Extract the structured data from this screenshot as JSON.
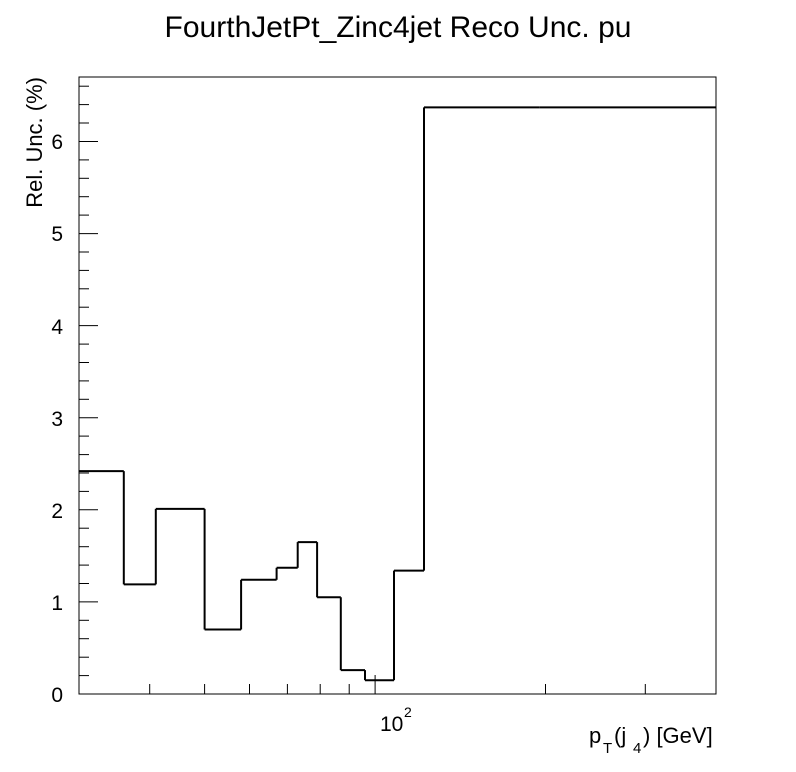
{
  "chart_data": {
    "type": "histogram",
    "title": "FourthJetPt_Zinc4jet Reco Unc. pu",
    "xlabel_main": "p",
    "xlabel_sub1": "T",
    "xlabel_paren_open": "(j",
    "xlabel_sub2": "4",
    "xlabel_tail": ") [GeV]",
    "ylabel": "Rel. Unc. (%)",
    "x_scale": "log",
    "xlim": [
      30,
      400
    ],
    "ylim": [
      0,
      6.7
    ],
    "x_tick_label_base": "10",
    "x_tick_label_exp": "2",
    "y_tick_labels": [
      "0",
      "1",
      "2",
      "3",
      "4",
      "5",
      "6"
    ],
    "bin_edges": [
      30,
      36,
      41,
      50,
      58,
      67,
      73,
      79,
      87,
      96,
      108,
      122,
      195,
      400
    ],
    "values": [
      2.42,
      1.19,
      2.01,
      0.7,
      1.24,
      1.37,
      1.65,
      1.05,
      0.26,
      0.15,
      1.34,
      6.37,
      6.37
    ],
    "line_color": "#000000",
    "grid": false,
    "legend": "none"
  }
}
